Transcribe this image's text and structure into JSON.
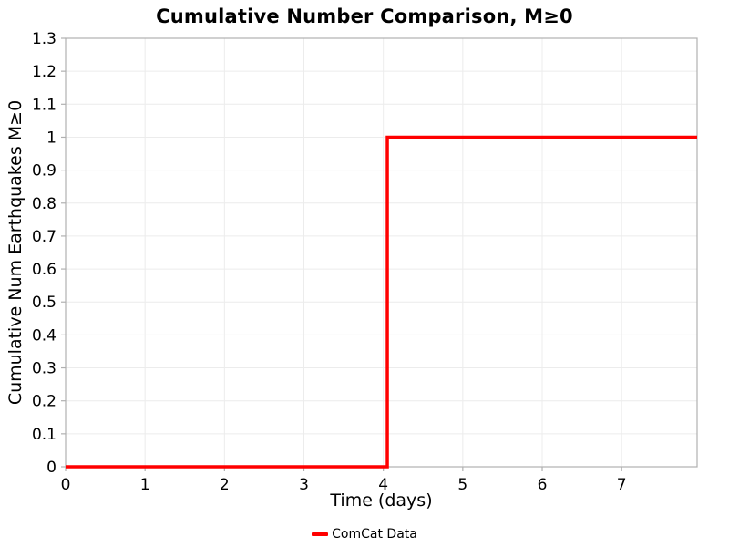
{
  "chart_data": {
    "type": "line",
    "subtype": "step",
    "title": "Cumulative Number Comparison, M≥0",
    "xlabel": "Time (days)",
    "ylabel": "Cumulative Num Earthquakes M≥0",
    "xlim": [
      0,
      7.95
    ],
    "ylim": [
      0,
      1.3
    ],
    "grid": true,
    "xticks": {
      "values": [
        0,
        1,
        2,
        3,
        4,
        5,
        6,
        7
      ],
      "labels": [
        "0",
        "1",
        "2",
        "3",
        "4",
        "5",
        "6",
        "7"
      ]
    },
    "yticks": {
      "values": [
        0,
        0.1,
        0.2,
        0.3,
        0.4,
        0.5,
        0.6,
        0.7,
        0.8,
        0.9,
        1,
        1.1,
        1.2,
        1.3
      ],
      "labels": [
        "0",
        "0.1",
        "0.2",
        "0.3",
        "0.4",
        "0.5",
        "0.6",
        "0.7",
        "0.8",
        "0.9",
        "1",
        "1.1",
        "1.2",
        "1.3"
      ]
    },
    "series": [
      {
        "name": "ComCat Data",
        "color": "#ff0000",
        "line_width": 3.5,
        "x": [
          0,
          4.05,
          4.05,
          7.95
        ],
        "y": [
          0,
          0,
          1,
          1
        ],
        "description": "cumulative count steps from 0 to 1 at t≈4.05 days"
      }
    ],
    "legend": {
      "position": "bottom-center",
      "entries": [
        {
          "label": "ComCat Data",
          "color": "#ff0000"
        }
      ]
    },
    "style": {
      "grid_color": "#ececec",
      "border_color": "#b0b0b0",
      "tick_color": "#b0b0b0",
      "text_color": "#000000",
      "background": "#ffffff"
    }
  }
}
